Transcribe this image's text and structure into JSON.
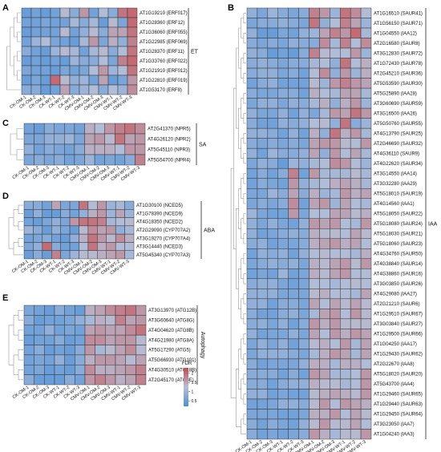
{
  "colors": {
    "low": "#4a90d9",
    "mid": "#b6bfd6",
    "high": "#c8484a",
    "group_bar": "#222222"
  },
  "legend": {
    "title": "FDR",
    "ticks": [
      "2",
      "1.5",
      "1",
      "0.5"
    ],
    "values": [
      2,
      1.5,
      1,
      0.5
    ],
    "range": [
      0.2,
      2.3
    ]
  },
  "chart_data": [
    {
      "type": "heatmap",
      "panel": "A",
      "group": "ET",
      "columns": [
        "CK-OM-1",
        "CK-OM-2",
        "CK-OM-3",
        "CK-WT-1",
        "CK-WT-2",
        "CK-WT-3",
        "CMV-OM-1",
        "CMV-OM-2",
        "CMV-OM-3",
        "CMV-WT-1",
        "CMV-WT-2",
        "CMV-WT-3"
      ],
      "rows": [
        "AT1G19210 (ERF017)",
        "AT1G28360 (ERF12)",
        "AT1G36060 (ERF055)",
        "AT1G22985 (ERF069)",
        "AT1G28370 (ERF11)",
        "AT1G33760 (ERF022)",
        "AT1G21910 (ERF012)",
        "AT1G22810 (ERF019)",
        "AT1G53170 (ERF8)"
      ],
      "values": [
        [
          0.5,
          0.6,
          0.5,
          0.6,
          1.3,
          0.8,
          1.6,
          0.6,
          1.2,
          0.8,
          1.9,
          2.0
        ],
        [
          0.6,
          0.6,
          0.7,
          0.6,
          0.6,
          1.1,
          0.8,
          1.1,
          0.5,
          1.3,
          0.7,
          2.0
        ],
        [
          0.5,
          0.6,
          0.6,
          0.6,
          1.3,
          0.6,
          0.9,
          1.3,
          0.8,
          1.5,
          1.5,
          1.9
        ],
        [
          0.6,
          1.0,
          1.2,
          0.7,
          0.6,
          0.5,
          1.1,
          1.6,
          0.7,
          1.4,
          0.9,
          1.8
        ],
        [
          0.8,
          0.6,
          0.5,
          1.0,
          1.3,
          1.1,
          0.6,
          1.1,
          1.3,
          0.8,
          1.2,
          1.9
        ],
        [
          0.5,
          0.6,
          0.5,
          0.6,
          0.5,
          1.0,
          0.8,
          0.8,
          1.2,
          0.7,
          1.8,
          2.0
        ],
        [
          0.7,
          0.6,
          0.6,
          0.5,
          0.7,
          0.6,
          0.7,
          1.2,
          1.6,
          1.0,
          1.2,
          1.9
        ],
        [
          0.5,
          0.7,
          0.5,
          2.0,
          1.3,
          0.9,
          1.0,
          0.6,
          1.5,
          0.5,
          0.7,
          1.6
        ],
        [
          0.8,
          0.8,
          0.5,
          0.6,
          1.5,
          0.8,
          1.0,
          1.2,
          0.8,
          1.2,
          1.0,
          1.7
        ]
      ]
    },
    {
      "type": "heatmap",
      "panel": "B",
      "group": "IAA",
      "columns": [
        "CK-OM-1",
        "CK-OM-2",
        "CK-OM-3",
        "CK-WT-1",
        "CK-WT-2",
        "CK-WT-3",
        "CMV-OM-1",
        "CMV-OM-2",
        "CMV-OM-3",
        "CMV-WT-1",
        "CMV-WT-2",
        "CMV-WT-3"
      ],
      "rows": [
        "AT1G16510 (SAUR41)",
        "AT1G56150 (SAUR71)",
        "AT1G04550 (IAA12)",
        "AT2G16580 (SAUR8)",
        "AT3G12830 (SAUR72)",
        "AT1G72430 (SAUR78)",
        "AT2G45210 (SAUR36)",
        "AT5G53590 (SAUR30)",
        "AT5G25890 (IAA28)",
        "AT3G60690 (SAUR59)",
        "AT3G16500 (IAA26)",
        "AT5G50760 (SAUR55)",
        "AT4G13790 (SAUR25)",
        "AT2G46690 (SAUR32)",
        "AT4G36110 (SAUR9)",
        "AT4G22620 (SAUR34)",
        "AT3G14550 (IAA14)",
        "AT3G32280 (IAA29)",
        "AT5G18010 (SAUR19)",
        "AT4G14560 (IAA1)",
        "AT5G18050 (SAUR22)",
        "AT5G18080 (SAUR24)",
        "AT5G18030 (SAUR21)",
        "AT5G18060 (SAUR23)",
        "AT4G34760 (SAUR50)",
        "AT4G38840 (SAUR14)",
        "AT4G38860 (SAUR16)",
        "AT3G03850 (SAUR26)",
        "AT4G29080 (IAA27)",
        "AT2G21210 (SAUR6)",
        "AT1G29510 (SAUR67)",
        "AT3G03840 (SAUR27)",
        "AT1G29500 (SAUR66)",
        "AT1G04250 (IAA17)",
        "AT1G29430 (SAUR62)",
        "AT2G22670 (IAA8)",
        "AT5G18020 (SAUR20)",
        "AT5G43700 (IAA4)",
        "AT1G29460 (SAUR65)",
        "AT1G29440 (SAUR63)",
        "AT1G29450 (SAUR64)",
        "AT3G23050 (IAA7)",
        "AT1G04240 (IAA3)"
      ],
      "values": [
        [
          0.9,
          0.7,
          1.0,
          0.8,
          0.7,
          0.8,
          1.8,
          1.6,
          1.0,
          1.9,
          1.7,
          1.2
        ],
        [
          0.7,
          0.8,
          0.8,
          0.9,
          0.8,
          0.7,
          1.9,
          0.9,
          1.2,
          1.8,
          1.5,
          1.0
        ],
        [
          0.9,
          0.5,
          0.5,
          0.7,
          0.6,
          0.9,
          1.0,
          1.5,
          1.8,
          1.6,
          2.0,
          1.1
        ],
        [
          0.8,
          0.7,
          0.8,
          0.7,
          0.9,
          0.8,
          0.8,
          1.7,
          1.1,
          1.8,
          1.2,
          1.7
        ],
        [
          0.9,
          0.8,
          0.5,
          0.6,
          0.5,
          0.8,
          1.8,
          1.3,
          1.2,
          1.2,
          1.6,
          1.0
        ],
        [
          0.8,
          0.9,
          0.8,
          0.7,
          0.8,
          0.8,
          1.1,
          1.2,
          0.9,
          1.9,
          1.2,
          1.4
        ],
        [
          0.8,
          0.9,
          0.9,
          0.7,
          0.8,
          0.6,
          1.2,
          1.7,
          0.9,
          1.6,
          1.0,
          1.4
        ],
        [
          0.6,
          0.8,
          0.9,
          0.6,
          0.6,
          0.6,
          1.3,
          1.0,
          1.6,
          1.8,
          1.6,
          1.5
        ],
        [
          0.8,
          0.7,
          0.7,
          0.8,
          0.8,
          0.6,
          1.4,
          1.2,
          1.1,
          1.5,
          1.5,
          1.1
        ],
        [
          0.7,
          0.9,
          0.9,
          0.7,
          0.9,
          0.8,
          1.1,
          1.4,
          0.9,
          1.4,
          1.6,
          1.0
        ],
        [
          0.9,
          0.7,
          0.7,
          0.9,
          0.6,
          0.9,
          0.7,
          1.1,
          1.6,
          1.5,
          1.9,
          1.6
        ],
        [
          0.8,
          0.6,
          0.6,
          0.9,
          0.8,
          0.9,
          1.2,
          1.3,
          0.9,
          1.9,
          0.8,
          1.0
        ],
        [
          0.9,
          0.9,
          0.8,
          0.6,
          0.9,
          0.6,
          1.4,
          0.9,
          1.9,
          1.4,
          1.6,
          1.1
        ],
        [
          0.8,
          0.7,
          0.8,
          0.7,
          0.8,
          0.7,
          1.5,
          1.6,
          1.6,
          1.3,
          1.2,
          1.6
        ],
        [
          0.9,
          0.6,
          1.0,
          0.8,
          0.8,
          0.9,
          1.5,
          0.9,
          1.6,
          1.2,
          1.5,
          1.1
        ],
        [
          0.7,
          0.9,
          0.8,
          0.5,
          1.0,
          0.9,
          1.1,
          1.2,
          1.7,
          1.6,
          1.2,
          1.0
        ],
        [
          0.6,
          0.8,
          0.6,
          0.8,
          1.8,
          0.6,
          1.6,
          1.1,
          1.1,
          1.1,
          1.3,
          1.1
        ],
        [
          0.6,
          0.8,
          0.7,
          0.6,
          1.6,
          0.9,
          1.1,
          1.2,
          1.4,
          1.5,
          1.4,
          1.1
        ],
        [
          0.7,
          0.7,
          1.0,
          0.8,
          1.5,
          0.8,
          1.4,
          1.0,
          1.1,
          1.6,
          1.4,
          1.5
        ],
        [
          0.7,
          0.8,
          0.7,
          0.8,
          1.7,
          0.6,
          1.5,
          1.6,
          1.0,
          1.5,
          1.2,
          1.1
        ],
        [
          1.0,
          0.7,
          0.6,
          0.6,
          1.6,
          0.7,
          1.2,
          1.2,
          1.5,
          1.5,
          1.3,
          1.4
        ],
        [
          0.9,
          0.7,
          0.9,
          0.7,
          0.6,
          0.9,
          1.6,
          1.5,
          1.6,
          1.2,
          1.1,
          1.6
        ],
        [
          0.9,
          0.6,
          0.7,
          0.8,
          0.9,
          0.8,
          1.4,
          1.3,
          1.3,
          1.2,
          1.5,
          1.3
        ],
        [
          0.8,
          0.9,
          0.6,
          0.7,
          0.7,
          0.8,
          1.4,
          1.5,
          1.6,
          1.4,
          1.5,
          1.2
        ],
        [
          0.6,
          0.9,
          0.8,
          0.9,
          0.6,
          0.9,
          1.2,
          1.3,
          1.2,
          1.2,
          1.1,
          1.4
        ],
        [
          0.7,
          0.8,
          0.9,
          0.8,
          0.9,
          0.7,
          1.4,
          1.3,
          1.5,
          1.6,
          1.3,
          1.6
        ],
        [
          0.6,
          0.7,
          0.6,
          1.0,
          0.6,
          0.7,
          1.4,
          1.3,
          1.5,
          1.6,
          1.2,
          1.2
        ],
        [
          0.8,
          0.9,
          0.9,
          0.7,
          0.6,
          0.7,
          1.2,
          1.2,
          1.1,
          1.2,
          1.3,
          1.2
        ],
        [
          0.9,
          0.9,
          0.9,
          0.7,
          0.7,
          0.7,
          1.3,
          1.4,
          1.2,
          1.2,
          1.1,
          1.5
        ],
        [
          0.9,
          0.9,
          0.6,
          0.8,
          0.8,
          0.7,
          1.5,
          1.2,
          1.5,
          1.3,
          1.5,
          1.3
        ],
        [
          0.8,
          0.6,
          0.6,
          0.8,
          0.9,
          0.7,
          1.1,
          1.5,
          1.6,
          1.2,
          1.6,
          1.3
        ],
        [
          0.8,
          0.9,
          0.7,
          0.9,
          0.6,
          0.8,
          1.6,
          1.4,
          1.6,
          1.3,
          1.3,
          1.3
        ],
        [
          0.9,
          0.6,
          0.7,
          0.7,
          0.9,
          0.7,
          1.5,
          1.2,
          1.6,
          1.4,
          1.6,
          1.5
        ],
        [
          0.7,
          0.9,
          0.7,
          0.9,
          0.6,
          0.8,
          1.3,
          1.4,
          1.2,
          1.6,
          1.1,
          1.5
        ],
        [
          0.7,
          0.9,
          0.9,
          0.9,
          0.8,
          0.7,
          1.1,
          1.4,
          1.6,
          1.5,
          1.1,
          1.5
        ],
        [
          0.8,
          0.6,
          0.7,
          0.7,
          0.7,
          0.9,
          1.4,
          1.4,
          1.1,
          1.4,
          1.4,
          1.2
        ],
        [
          0.8,
          0.8,
          0.8,
          0.6,
          0.8,
          0.6,
          1.6,
          1.5,
          1.1,
          1.1,
          1.2,
          1.6
        ],
        [
          0.8,
          0.8,
          0.6,
          0.8,
          0.9,
          0.9,
          1.4,
          1.3,
          1.3,
          1.1,
          1.2,
          1.6
        ],
        [
          0.9,
          0.9,
          0.6,
          0.7,
          0.6,
          0.6,
          1.3,
          1.4,
          1.5,
          1.4,
          1.3,
          1.6
        ],
        [
          0.6,
          0.6,
          0.7,
          0.9,
          0.9,
          0.8,
          1.3,
          1.6,
          1.2,
          1.6,
          1.5,
          1.4
        ],
        [
          0.7,
          0.7,
          0.7,
          0.6,
          0.6,
          0.7,
          1.4,
          1.4,
          1.6,
          1.2,
          1.5,
          1.3
        ],
        [
          0.8,
          0.6,
          0.8,
          0.7,
          0.6,
          0.9,
          1.3,
          1.6,
          1.3,
          1.3,
          1.5,
          1.2
        ],
        [
          0.8,
          0.6,
          0.7,
          0.6,
          0.7,
          0.8,
          1.6,
          1.4,
          1.1,
          1.3,
          1.3,
          1.6
        ]
      ]
    },
    {
      "type": "heatmap",
      "panel": "C",
      "group": "SA",
      "columns": [
        "CK-OM-1",
        "CK-OM-2",
        "CK-OM-3",
        "CK-WT-1",
        "CK-WT-2",
        "CK-WT-3",
        "CMV-OM-1",
        "CMV-OM-2",
        "CMV-OM-3",
        "CMV-WT-1",
        "CMV-WT-2",
        "CMV-WT-3"
      ],
      "rows": [
        "AT2G41370 (NPR5)",
        "AT4G26120 (NPR2)",
        "AT5G45110 (NPR3)",
        "AT5G54700 (NPR4)"
      ],
      "values": [
        [
          0.6,
          0.5,
          0.8,
          0.7,
          0.7,
          0.6,
          1.4,
          1.2,
          1.6,
          1.8,
          1.9,
          1.7
        ],
        [
          0.7,
          0.7,
          0.9,
          0.9,
          1.0,
          0.7,
          1.5,
          1.6,
          1.3,
          1.9,
          1.5,
          1.6
        ],
        [
          0.9,
          0.6,
          0.8,
          0.7,
          0.6,
          0.8,
          1.4,
          1.4,
          1.4,
          1.2,
          1.6,
          1.6
        ],
        [
          0.7,
          0.8,
          0.7,
          0.8,
          0.6,
          0.7,
          1.0,
          0.6,
          0.7,
          0.6,
          0.8,
          1.8
        ]
      ]
    },
    {
      "type": "heatmap",
      "panel": "D",
      "group": "ABA",
      "columns": [
        "CK-OM-1",
        "CK-OM-2",
        "CK-OM-3",
        "CK-WT-1",
        "CK-WT-2",
        "CK-WT-3",
        "CMV-OM-1",
        "CMV-OM-2",
        "CMV-OM-3",
        "CMV-WT-1",
        "CMV-WT-2",
        "CMV-WT-3"
      ],
      "rows": [
        "AT1G30100 (NCED5)",
        "AT1G78390 (NCED9)",
        "AT4G18350 (NCED2)",
        "AT2G29090 (CYP707A2)",
        "AT3G19270 (CYP707A4)",
        "AT3G14440 (NCED3)",
        "AT5G45340 (CYP707A3)"
      ],
      "values": [
        [
          0.8,
          0.8,
          0.6,
          1.5,
          0.7,
          0.7,
          1.9,
          1.2,
          1.6,
          1.0,
          1.1,
          0.8
        ],
        [
          0.5,
          0.9,
          0.5,
          0.5,
          0.8,
          0.6,
          0.9,
          1.4,
          1.6,
          1.0,
          1.5,
          1.0
        ],
        [
          0.6,
          0.5,
          0.7,
          0.9,
          0.7,
          1.6,
          1.9,
          1.9,
          1.8,
          1.1,
          1.2,
          1.3
        ],
        [
          1.0,
          0.8,
          0.5,
          0.9,
          0.7,
          0.5,
          1.3,
          1.7,
          1.5,
          1.6,
          0.9,
          1.1
        ],
        [
          0.6,
          0.7,
          0.8,
          0.6,
          0.5,
          0.9,
          1.4,
          1.9,
          1.6,
          1.3,
          1.7,
          1.4
        ],
        [
          0.7,
          0.9,
          2.0,
          0.8,
          0.6,
          0.6,
          1.2,
          1.9,
          1.4,
          1.6,
          1.2,
          1.2
        ],
        [
          0.5,
          0.8,
          0.5,
          1.8,
          0.7,
          1.0,
          1.3,
          1.3,
          1.4,
          1.5,
          1.6,
          1.1
        ]
      ]
    },
    {
      "type": "heatmap",
      "panel": "E",
      "group": "Autophagy",
      "columns": [
        "CK-OM-1",
        "CK-OM-2",
        "CK-OM-3",
        "CK-WT-1",
        "CK-WT-2",
        "CK-WT-3",
        "CMV-OM-1",
        "CMV-OM-2",
        "CMV-OM-3",
        "CMV-WT-1",
        "CMV-WT-2",
        "CMV-WT-3"
      ],
      "rows": [
        "AT3G13970 (ATG12B)",
        "AT3G60640 (ATG8G)",
        "AT4G04620 (ATG8B)",
        "AT4G21980 (ATG8A)",
        "AT5G17290 (ATG5)",
        "AT5G66930 (ATG101)",
        "AT4G30510 (ATG18B)",
        "AT2G45170 (ATG8E)"
      ],
      "values": [
        [
          0.7,
          0.6,
          0.5,
          0.8,
          0.6,
          0.5,
          1.4,
          1.5,
          1.7,
          1.8,
          1.9,
          1.6
        ],
        [
          0.8,
          0.5,
          0.6,
          0.6,
          0.7,
          0.9,
          1.1,
          1.4,
          1.3,
          1.8,
          1.5,
          1.6
        ],
        [
          0.6,
          0.6,
          0.9,
          0.6,
          0.7,
          0.6,
          1.5,
          1.6,
          1.5,
          1.5,
          1.7,
          1.9
        ],
        [
          0.5,
          0.6,
          0.6,
          0.8,
          0.5,
          0.6,
          1.7,
          1.7,
          1.5,
          1.6,
          1.6,
          1.3
        ],
        [
          0.6,
          0.8,
          0.5,
          0.6,
          0.5,
          0.8,
          1.6,
          1.1,
          1.3,
          1.5,
          1.7,
          1.3
        ],
        [
          0.6,
          0.7,
          0.6,
          0.9,
          0.5,
          0.8,
          1.4,
          1.6,
          1.6,
          1.5,
          1.3,
          1.5
        ],
        [
          0.6,
          0.7,
          0.5,
          0.6,
          0.5,
          0.8,
          1.7,
          1.4,
          1.4,
          1.5,
          1.6,
          1.8
        ],
        [
          0.8,
          0.5,
          0.5,
          0.5,
          0.8,
          0.6,
          1.6,
          1.8,
          1.6,
          1.4,
          1.5,
          1.8
        ]
      ]
    }
  ]
}
